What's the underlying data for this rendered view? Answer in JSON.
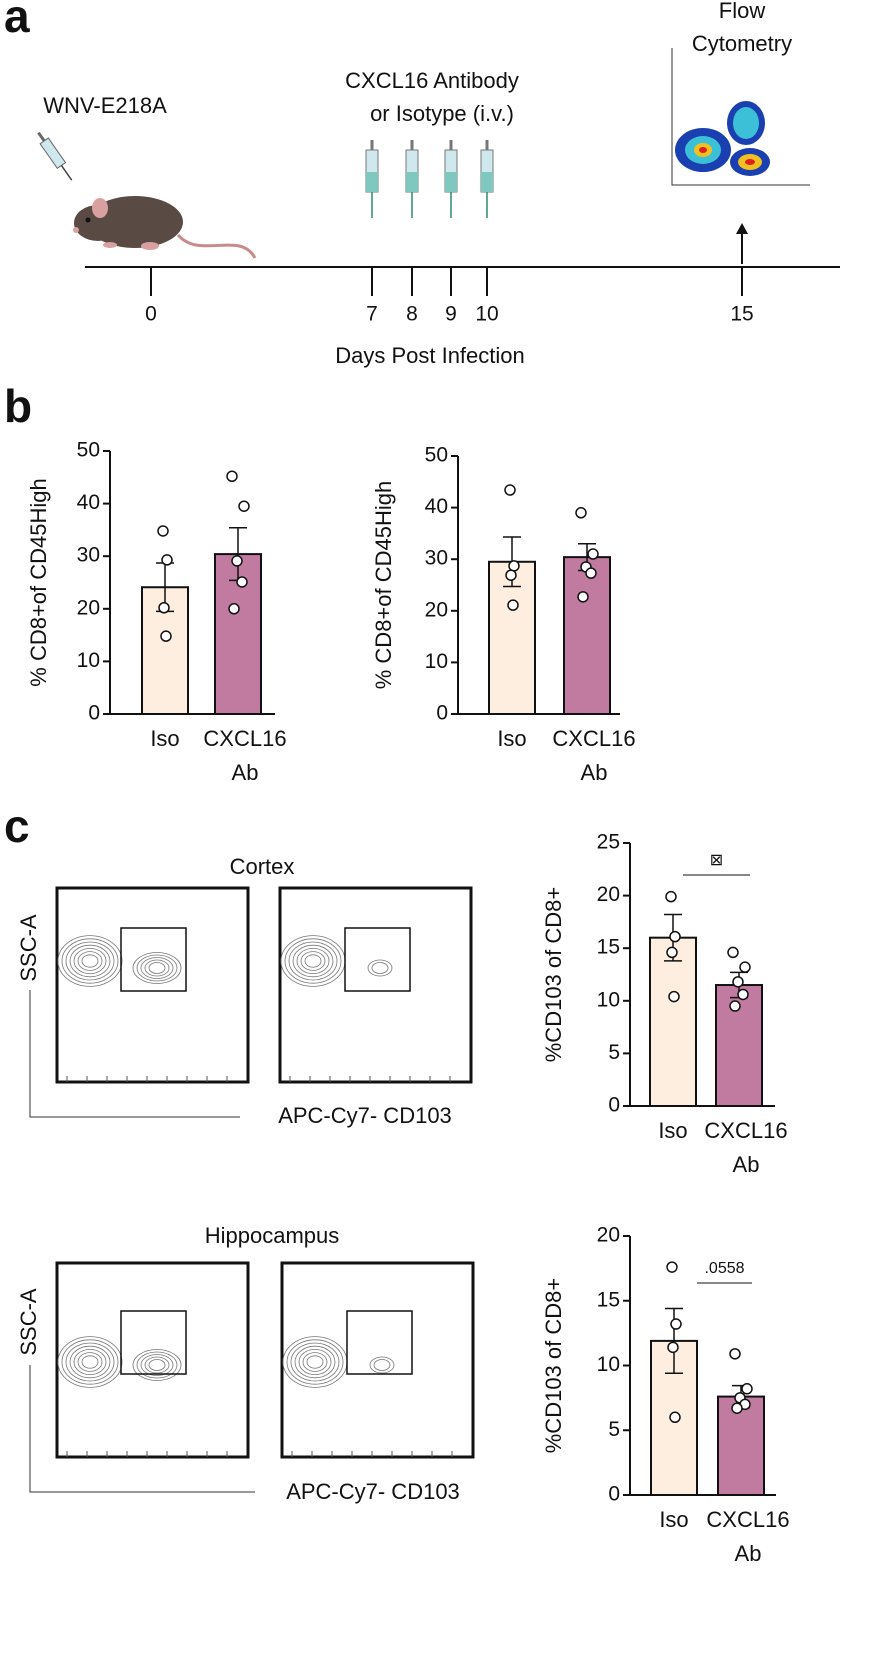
{
  "figure": {
    "panel_labels": [
      "a",
      "b",
      "c"
    ],
    "timeline": {
      "infection_label": "WNV-E218A",
      "treatment_label": [
        "CXCL16 Antibody",
        "or Isotype (i.v.)"
      ],
      "readout_label": [
        "Flow",
        "Cytometry"
      ],
      "xticks": [
        0,
        7,
        8,
        9,
        10,
        15
      ],
      "xlabel": "Days Post Infection"
    },
    "flow": {
      "regions": [
        "Cortex",
        "Hippocampus"
      ],
      "ylabel": "SSC-A",
      "xlabel": "APC-Cy7- CD103"
    }
  },
  "chart_data": [
    {
      "type": "bar",
      "ylabel": "% CD8+of CD45High",
      "categories": [
        "Iso",
        "CXCL16 Ab"
      ],
      "values": [
        24.1,
        30.4
      ],
      "errors": [
        4.6,
        5.0
      ],
      "points": [
        [
          34.8,
          29.3,
          20.2,
          14.8
        ],
        [
          45.2,
          39.5,
          29.1,
          25.1,
          20.0
        ]
      ],
      "colors": [
        "#fdeee0",
        "#c27ba0"
      ],
      "ylim": [
        0,
        50
      ],
      "yticks": [
        0,
        10,
        20,
        30,
        40,
        50
      ]
    },
    {
      "type": "bar",
      "ylabel": "% CD8+of CD45High",
      "categories": [
        "Iso",
        "CXCL16 Ab"
      ],
      "values": [
        29.5,
        30.4
      ],
      "errors": [
        4.8,
        2.6
      ],
      "points": [
        [
          43.4,
          28.7,
          26.9,
          21.1
        ],
        [
          39.0,
          31.0,
          28.5,
          27.3,
          22.7
        ]
      ],
      "colors": [
        "#fdeee0",
        "#c27ba0"
      ],
      "ylim": [
        0,
        50
      ],
      "yticks": [
        0,
        10,
        20,
        30,
        40,
        50
      ]
    },
    {
      "type": "bar",
      "ylabel": "%CD103 of CD8+",
      "categories": [
        "Iso",
        "CXCL16 Ab"
      ],
      "values": [
        16.0,
        11.5
      ],
      "errors": [
        2.2,
        1.2
      ],
      "points": [
        [
          19.9,
          16.1,
          14.6,
          10.4
        ],
        [
          14.6,
          13.2,
          11.8,
          10.6,
          9.5
        ]
      ],
      "colors": [
        "#fdeee0",
        "#c27ba0"
      ],
      "ylim": [
        0,
        25
      ],
      "yticks": [
        0,
        5,
        10,
        15,
        20,
        25
      ],
      "annotation": "⊠"
    },
    {
      "type": "bar",
      "ylabel": "%CD103 of CD8+",
      "categories": [
        "Iso",
        "CXCL16 Ab"
      ],
      "values": [
        11.9,
        7.6
      ],
      "errors": [
        2.5,
        0.85
      ],
      "points": [
        [
          17.6,
          13.2,
          11.4,
          6.0
        ],
        [
          10.9,
          8.2,
          7.5,
          7.0,
          6.7
        ]
      ],
      "colors": [
        "#fdeee0",
        "#c27ba0"
      ],
      "ylim": [
        0,
        20
      ],
      "yticks": [
        0,
        5,
        10,
        15,
        20
      ],
      "annotation": ".0558"
    }
  ]
}
